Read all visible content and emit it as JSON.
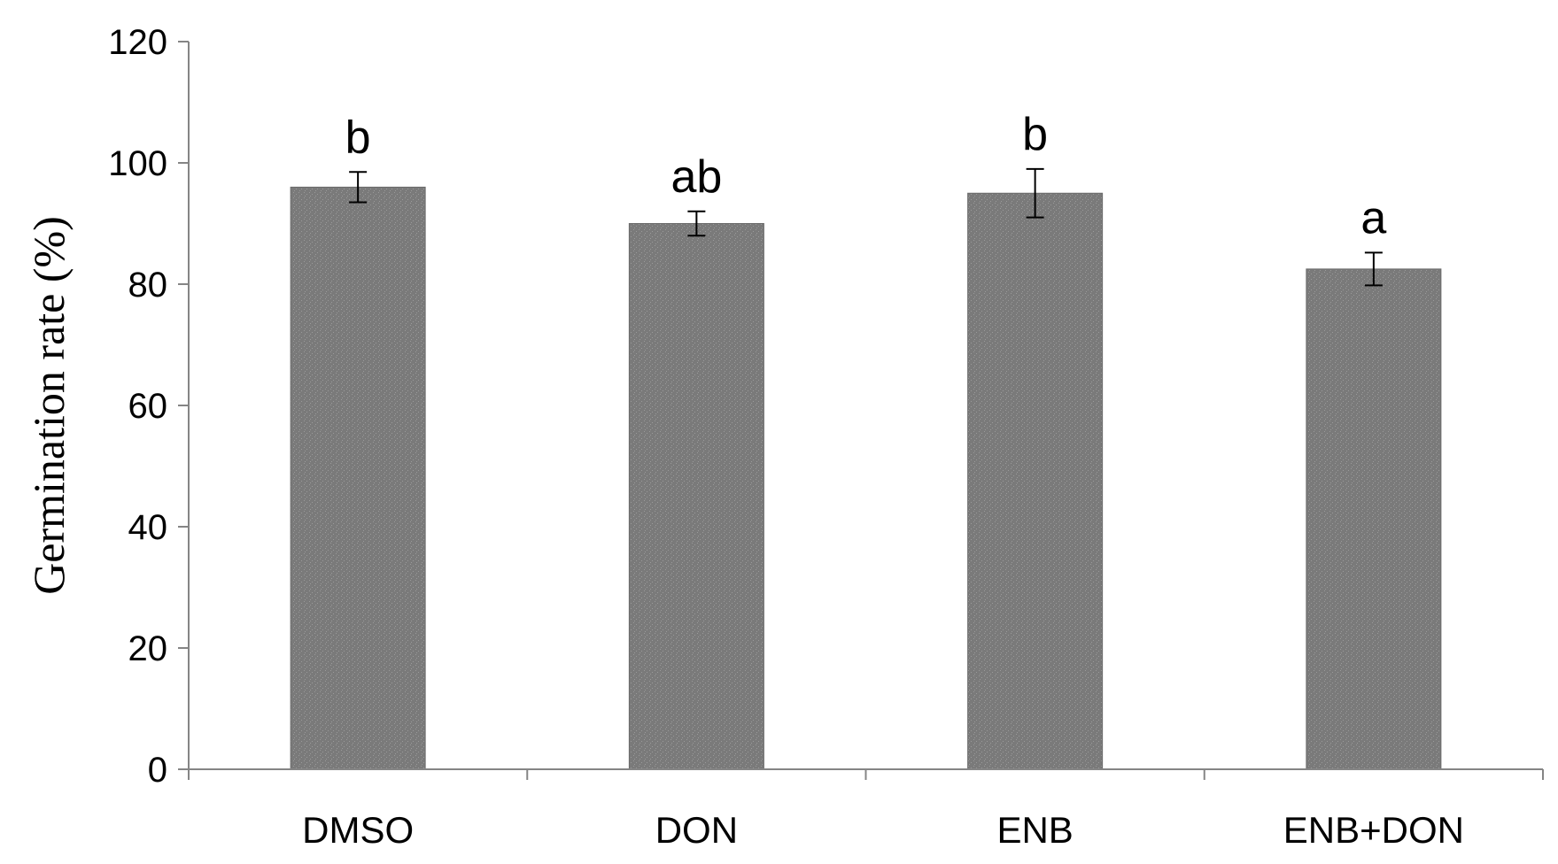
{
  "chart_data": {
    "type": "bar",
    "title": "",
    "xlabel": "",
    "ylabel": "Germination rate (%)",
    "ylim": [
      0,
      120
    ],
    "yticks": [
      0,
      20,
      40,
      60,
      80,
      100,
      120
    ],
    "categories": [
      "DMSO",
      "DON",
      "ENB",
      "ENB+DON"
    ],
    "values": [
      96,
      90,
      95,
      82.5
    ],
    "errors": [
      2.5,
      2,
      4,
      2.7
    ],
    "significance_labels": [
      "b",
      "ab",
      "b",
      "a"
    ],
    "grid": false,
    "legend": "none",
    "colors": {
      "bar": "#7a7a7a",
      "bar_speckle": "#9a9a9a",
      "axis": "#858585",
      "text": "#000000"
    }
  }
}
